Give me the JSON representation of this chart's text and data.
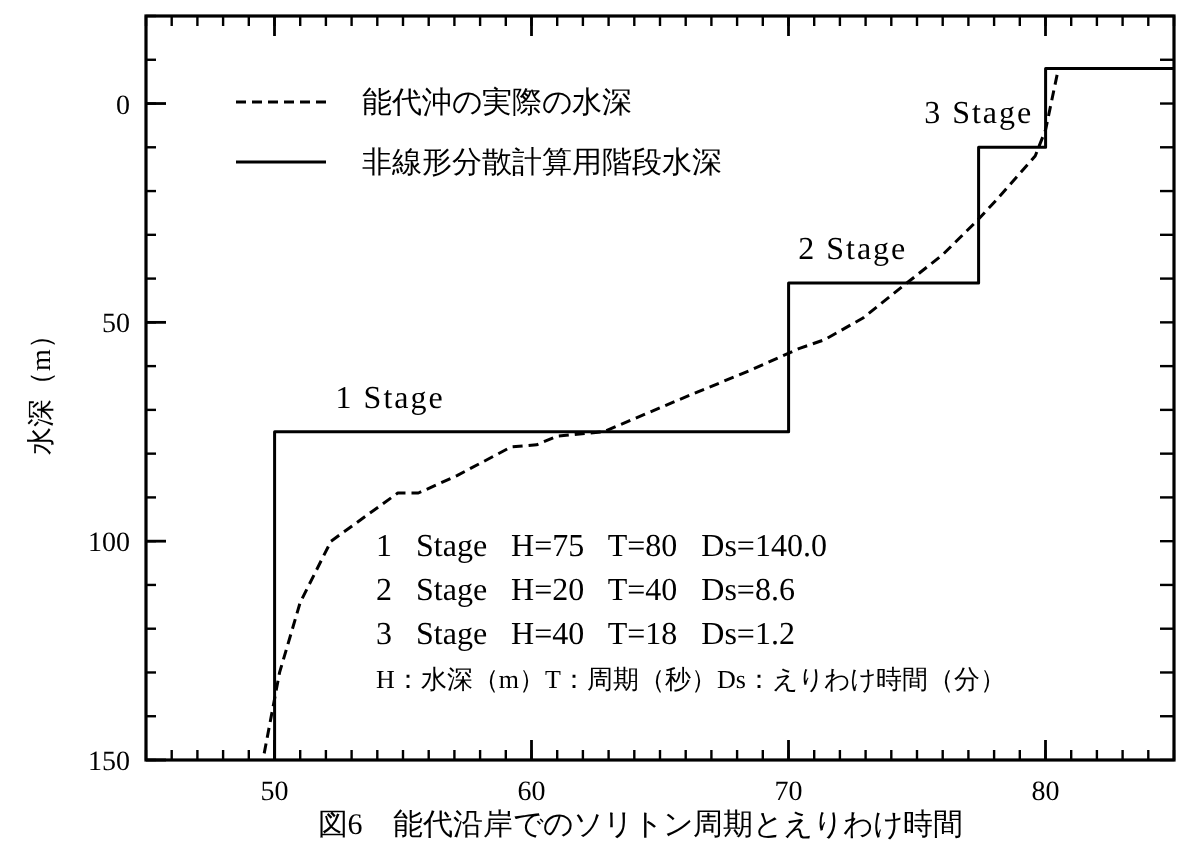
{
  "chart_data": {
    "type": "line",
    "title": "図6　能代沿岸でのソリトン周期とえりわけ時間",
    "ylabel": "水深（m）",
    "xlim": [
      45,
      85
    ],
    "ylim": [
      150,
      -20
    ],
    "xticks": [
      50,
      60,
      70,
      80
    ],
    "yticks": [
      0,
      50,
      100,
      150
    ],
    "legend": "top left",
    "grid": false,
    "marker": "none",
    "series": [
      {
        "name": "能代沖の実際の水深",
        "color": "#000000",
        "line_style": "dashed",
        "x": [
          49.6,
          50.2,
          51,
          52.2,
          54.8,
          55.6,
          57.1,
          59.2,
          60.2,
          61,
          62.8,
          65.6,
          68.5,
          70.4,
          71.4,
          72.9,
          74.6,
          76,
          77.3,
          78.1,
          79.6,
          80,
          80.5,
          85
        ],
        "values": [
          148.5,
          130,
          114,
          100,
          89,
          89,
          85,
          78.5,
          78,
          76,
          75,
          68,
          61,
          56,
          54,
          49,
          41,
          34.5,
          27,
          22,
          12,
          6,
          -8,
          -8
        ]
      },
      {
        "name": "非線形分散計算用階段水深",
        "color": "#000000",
        "line_style": "solid",
        "x": [
          50,
          50,
          70,
          70,
          77.4,
          77.4,
          80,
          80,
          85
        ],
        "values": [
          150,
          75,
          75,
          41,
          41,
          10,
          10,
          -8,
          -8
        ]
      }
    ],
    "annotations": [
      {
        "text": "1 Stage",
        "x": 54.5,
        "y": 75
      },
      {
        "text": "2 Stage",
        "x": 72.5,
        "y": 41
      },
      {
        "text": "3 Stage",
        "x": 77.4,
        "y": 10
      },
      "1 Stage H=75 T=80 Ds=140.0",
      "2 Stage H=20 T=40 Ds=8.6",
      "3 Stage H=40 T=18 Ds=1.2",
      "H：水深（m）T：周期（秒）Ds：えりわけ時間（分）"
    ]
  }
}
